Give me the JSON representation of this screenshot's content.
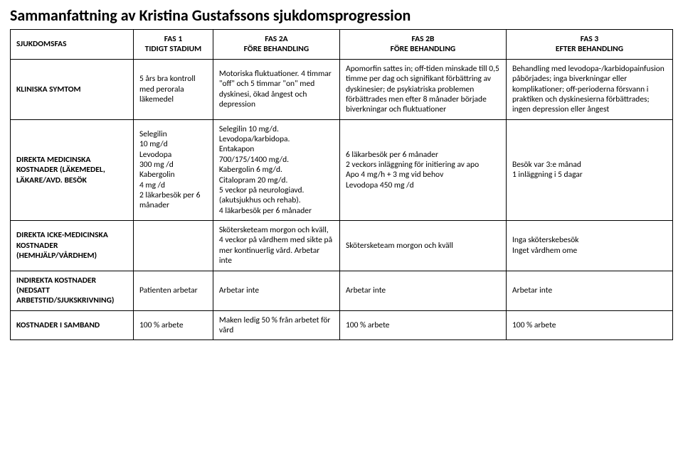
{
  "title": "Sammanfattning av Kristina Gustafssons sjukdomsprogression",
  "headers": {
    "rowlabel": "SJUKDOMSFAS",
    "phase1": "FAS 1\nTIDIGT STADIUM",
    "phase2a": "FAS 2A\nFÖRE BEHANDLING",
    "phase2b": "FAS 2B\nFÖRE BEHANDLING",
    "phase3": "FAS 3\nEFTER BEHANDLING"
  },
  "rows": {
    "symtom": {
      "label": "KLINISKA SYMTOM",
      "p1": "5 års bra kontroll med perorala läkemedel",
      "p2a": "Motoriska fluktuationer. 4 timmar \"off\" och 5 timmar \"on\" med dyskinesi, ökad ångest och depression",
      "p2b": "Apomorfin sattes in; off-tiden minskade till 0,5 timme per dag och signifikant förbättring av dyskinesier; de psykiatriska problemen förbättrades men efter 8 månader började biverkningar och fluktuationer",
      "p3": "Behandling med levodopa-/karbidopainfusion påbörjades; inga biverkningar eller komplikationer; off-perioderna försvann i praktiken och dyskinesierna förbättrades; ingen depression eller ångest"
    },
    "direkta_med": {
      "label": "DIREKTA MEDICINSKA KOSTNADER (LÄKEMEDEL, LÄKARE/AVD. BESÖK",
      "p1": "Selegilin\n10 mg/d\nLevodopa\n300 mg /d\nKabergolin\n4 mg /d\n2 läkarbesök per 6 månader",
      "p2a": "Selegilin 10 mg/d.\nLevodopa/karbidopa.\nEntakapon\n700/175/1400 mg/d.\nKabergolin 6 mg/d.\nCitalopram 20 mg/d.\n5 veckor på neurologiavd.\n(akutsjukhus och rehab).\n4 läkarbesök per 6 månader",
      "p2b": "6 läkarbesök per 6 månader\n2 veckors inläggning för initiering av apo\nApo 4 mg/h + 3 mg vid behov\nLevodopa 450 mg /d",
      "p3": "Besök var 3:e månad\n1 inläggning i 5 dagar"
    },
    "direkta_icke": {
      "label": "DIREKTA ICKE-MEDICINSKA KOSTNADER (HEMHJÄLP/VÅRDHEM)",
      "p1": "",
      "p2a": "Skötersketeam morgon och kväll, 4 veckor på vårdhem med sikte på mer kontinuerlig vård. Arbetar inte",
      "p2b": "Skötersketeam morgon och kväll",
      "p3": "Inga sköterskebesök\nInget vårdhem ome"
    },
    "indirekta": {
      "label": "INDIREKTA KOSTNADER (NEDSATT ARBETSTID/SJUKSKRIVNING)",
      "p1": "Patienten arbetar",
      "p2a": "Arbetar inte",
      "p2b": "Arbetar inte",
      "p3": "Arbetar inte"
    },
    "samband": {
      "label": "KOSTNADER I SAMBAND",
      "p1": "100 % arbete",
      "p2a": "Maken ledig 50 % från arbetet för vård",
      "p2b": "100 % arbete",
      "p3": "100 % arbete"
    }
  }
}
